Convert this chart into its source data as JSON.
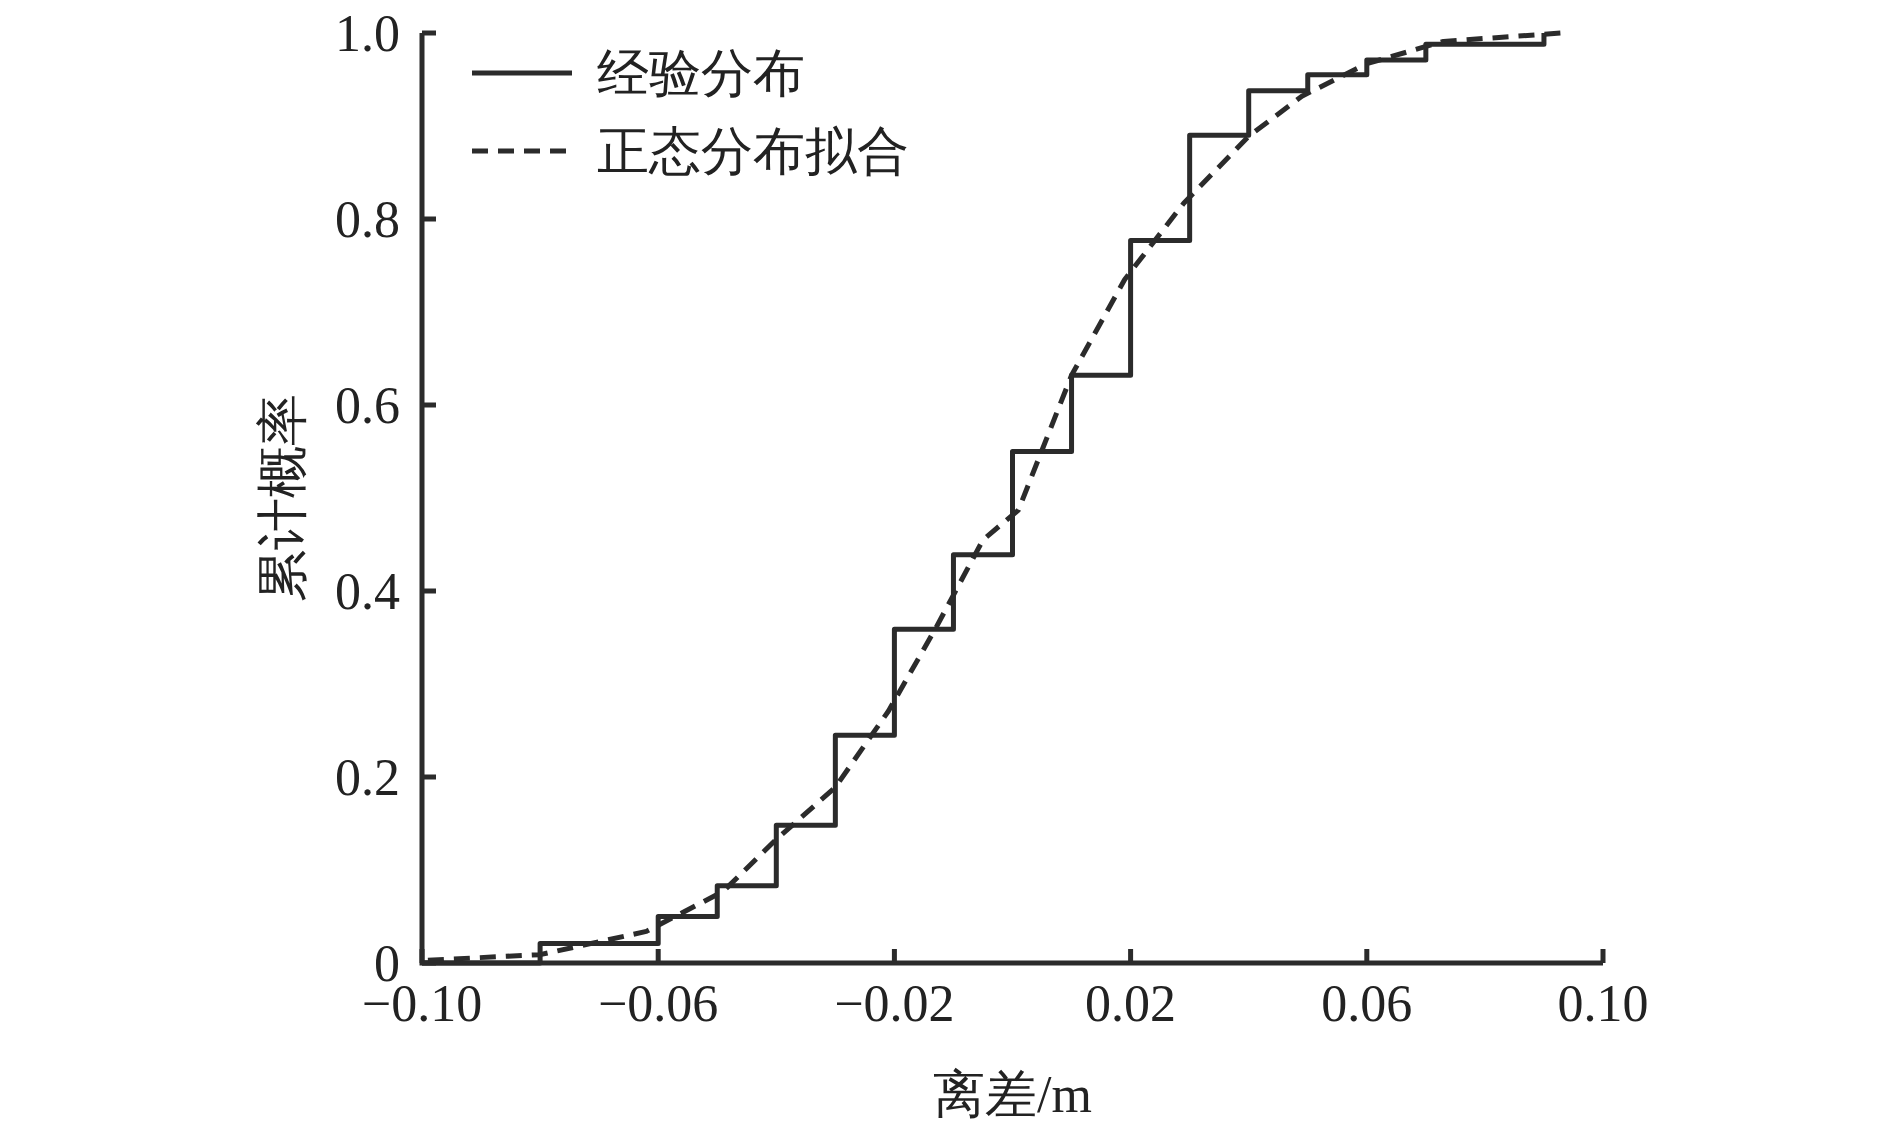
{
  "chart_data": {
    "type": "line",
    "xlabel": "离差/m",
    "ylabel": "累计概率",
    "xlim": [
      -0.1,
      0.1
    ],
    "ylim": [
      0,
      1
    ],
    "xticks": [
      {
        "value": -0.1,
        "label": "−0.10"
      },
      {
        "value": -0.06,
        "label": "−0.06"
      },
      {
        "value": -0.02,
        "label": "−0.02"
      },
      {
        "value": 0.02,
        "label": "0.02"
      },
      {
        "value": 0.06,
        "label": "0.06"
      },
      {
        "value": 0.1,
        "label": "0.10"
      }
    ],
    "yticks": [
      0,
      {
        "value": 0.2,
        "label": "0.2"
      },
      {
        "value": 0.4,
        "label": "0.4"
      },
      {
        "value": 0.6,
        "label": "0.6"
      },
      {
        "value": 0.8,
        "label": "0.8"
      },
      {
        "value": 1,
        "label": "1.0"
      }
    ],
    "legend": "top left",
    "grid": false,
    "series": [
      {
        "name": "经验分布",
        "type": "step",
        "color": "#2b2b2b",
        "line_style": "solid",
        "x": [
          -0.1,
          -0.08,
          -0.06,
          -0.05,
          -0.04,
          -0.03,
          -0.02,
          -0.01,
          0,
          0.01,
          0.02,
          0.03,
          0.04,
          0.05,
          0.06,
          0.07,
          0.09
        ],
        "values": [
          0,
          0.021,
          0.05,
          0.083,
          0.148,
          0.245,
          0.359,
          0.439,
          0.55,
          0.632,
          0.777,
          0.89,
          0.938,
          0.955,
          0.971,
          0.988,
          1.0
        ]
      },
      {
        "name": "正态分布拟合",
        "type": "line",
        "color": "#2b2b2b",
        "line_style": "dashed",
        "x": [
          -0.099,
          -0.08,
          -0.062,
          -0.049,
          -0.04,
          -0.03,
          -0.021,
          -0.013,
          -0.005,
          0.001,
          0.01,
          0.019,
          0.029,
          0.04,
          0.049,
          0.06,
          0.073,
          0.093
        ],
        "values": [
          0.003,
          0.009,
          0.034,
          0.077,
          0.133,
          0.189,
          0.271,
          0.36,
          0.455,
          0.487,
          0.632,
          0.735,
          0.817,
          0.889,
          0.932,
          0.967,
          0.991,
          1.0
        ]
      }
    ]
  }
}
